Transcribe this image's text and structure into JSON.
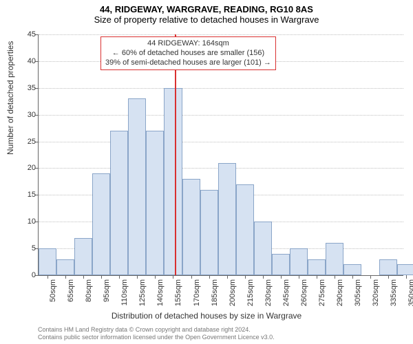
{
  "title": "44, RIDGEWAY, WARGRAVE, READING, RG10 8AS",
  "subtitle": "Size of property relative to detached houses in Wargrave",
  "chart": {
    "type": "histogram",
    "ylabel": "Number of detached properties",
    "xlabel": "Distribution of detached houses by size in Wargrave",
    "ylim": [
      0,
      45
    ],
    "ytick_step": 5,
    "bar_fill": "#d6e2f2",
    "bar_border": "#8aa5c8",
    "grid_color": "#bfbfbf",
    "axis_color": "#666666",
    "background_color": "#ffffff",
    "marker_color": "#d93030",
    "marker_x": 164,
    "x_min": 50,
    "x_max": 355,
    "x_tick_step": 15,
    "x_tick_suffix": "sqm",
    "bar_width_units": 15,
    "categories": [
      50,
      65,
      80,
      95,
      110,
      125,
      140,
      155,
      170,
      185,
      200,
      215,
      230,
      245,
      260,
      275,
      290,
      305,
      320,
      335,
      350
    ],
    "values": [
      5,
      3,
      7,
      19,
      27,
      33,
      27,
      35,
      18,
      16,
      21,
      17,
      10,
      4,
      5,
      3,
      6,
      2,
      0,
      3,
      2
    ]
  },
  "annotation": {
    "line1": "44 RIDGEWAY: 164sqm",
    "line2": "← 60% of detached houses are smaller (156)",
    "line3": "39% of semi-detached houses are larger (101) →"
  },
  "footer": {
    "line1": "Contains HM Land Registry data © Crown copyright and database right 2024.",
    "line2": "Contains public sector information licensed under the Open Government Licence v3.0."
  }
}
